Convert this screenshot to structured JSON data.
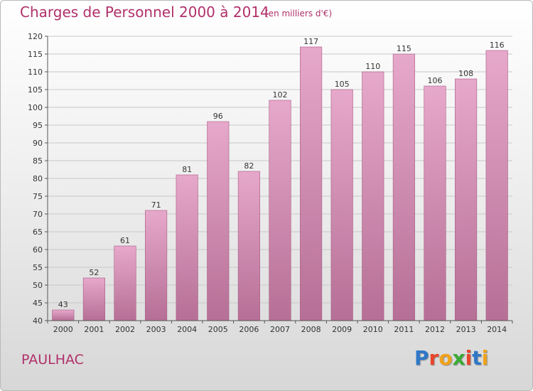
{
  "header": {
    "title": "Charges de Personnel 2000 à 2014",
    "subtitle": "(en milliers d'€)"
  },
  "footer": {
    "commune": "PAULHAC",
    "logo": [
      "P",
      "r",
      "o",
      "x",
      "i",
      "t",
      "i"
    ],
    "logo_colors": [
      "#2f78c8",
      "#e8452c",
      "#f0a21a",
      "#3aaa35",
      "#e8452c",
      "#2f78c8",
      "#f0a21a"
    ]
  },
  "colors": {
    "bar_top": "#e6a8cb",
    "bar_bottom": "#b66f96",
    "bar_edge": "#a85a86",
    "title": "#b0306a"
  },
  "chart_data": {
    "type": "bar",
    "title": "Charges de Personnel 2000 à 2014",
    "subtitle": "(en milliers d'€)",
    "categories": [
      "2000",
      "2001",
      "2002",
      "2003",
      "2004",
      "2005",
      "2006",
      "2007",
      "2008",
      "2009",
      "2010",
      "2011",
      "2012",
      "2013",
      "2014"
    ],
    "values": [
      43,
      52,
      61,
      71,
      81,
      96,
      82,
      102,
      117,
      105,
      110,
      115,
      106,
      108,
      116
    ],
    "ylim": [
      40,
      120
    ],
    "yticks": [
      40,
      45,
      50,
      55,
      60,
      65,
      70,
      75,
      80,
      85,
      90,
      95,
      100,
      105,
      110,
      115,
      120
    ],
    "grid": true
  }
}
